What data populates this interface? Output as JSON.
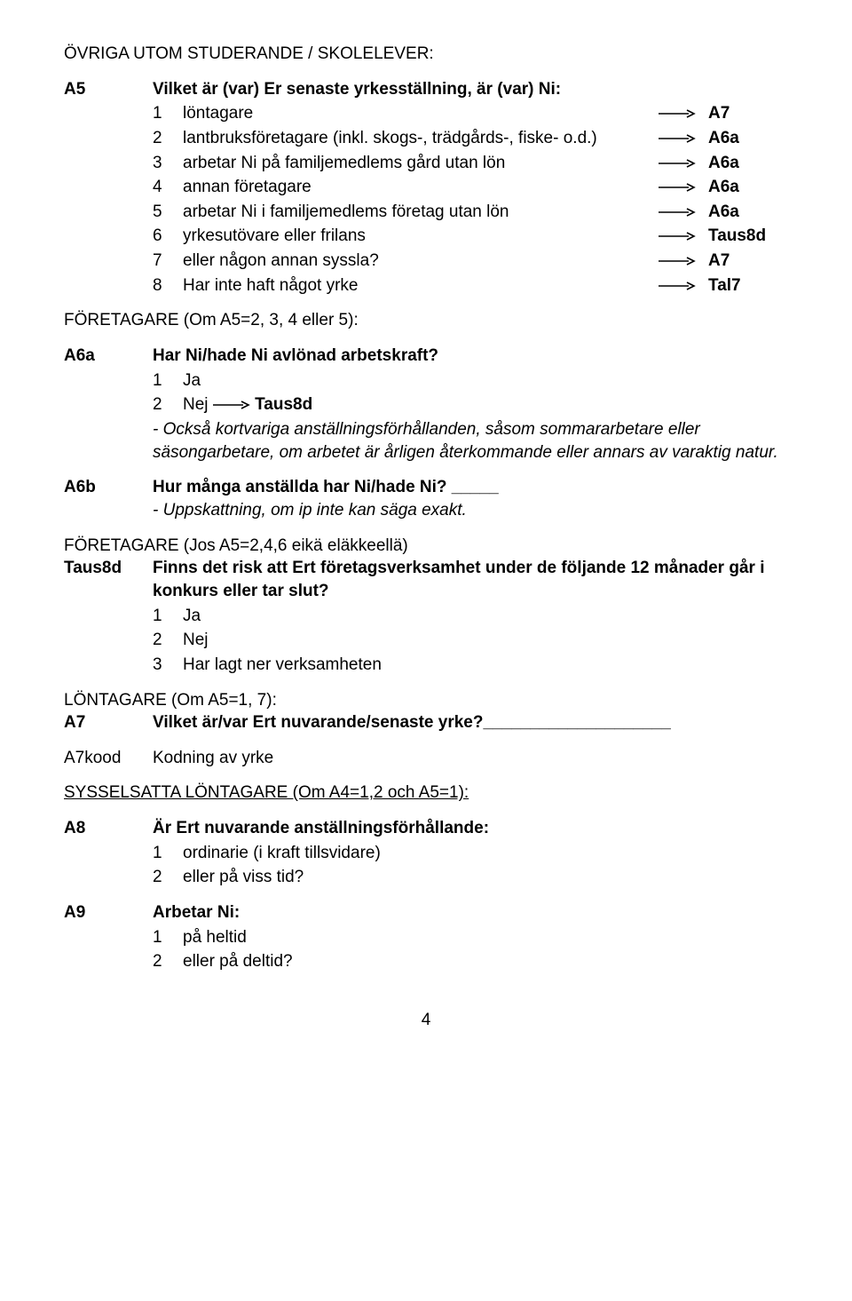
{
  "header": {
    "title": "ÖVRIGA UTOM STUDERANDE / SKOLELEVER:"
  },
  "a5": {
    "code": "A5",
    "question": "Vilket är (var) Er senaste yrkesställning, är (var) Ni:",
    "options": [
      {
        "n": "1",
        "text": "löntagare",
        "target": "A7"
      },
      {
        "n": "2",
        "text": "lantbruksföretagare (inkl. skogs-, trädgårds-, fiske- o.d.)",
        "target": "A6a"
      },
      {
        "n": "3",
        "text": "arbetar Ni på familjemedlems gård utan lön",
        "target": "A6a"
      },
      {
        "n": "4",
        "text": "annan företagare",
        "target": "A6a"
      },
      {
        "n": "5",
        "text": "arbetar Ni i familjemedlems företag utan lön",
        "target": "A6a"
      },
      {
        "n": "6",
        "text": "yrkesutövare eller frilans",
        "target": "Taus8d"
      },
      {
        "n": "7",
        "text": "eller någon annan syssla?",
        "target": "A7"
      },
      {
        "n": "8",
        "text": "Har inte haft något yrke",
        "target": "Tal7"
      }
    ]
  },
  "foretagare1": {
    "label": "FÖRETAGARE (Om A5=2, 3, 4 eller 5):"
  },
  "a6a": {
    "code": "A6a",
    "question": "Har Ni/hade Ni avlönad arbetskraft?",
    "opt1_n": "1",
    "opt1_text": "Ja",
    "opt2_n": "2",
    "opt2_text": "Nej",
    "opt2_target": "Taus8d",
    "note": "- Också kortvariga anställningsförhållanden, såsom sommararbetare eller säsongarbetare, om arbetet är årligen återkommande eller annars av varaktig natur."
  },
  "a6b": {
    "code": "A6b",
    "question": "Hur många anställda har Ni/hade Ni? _____",
    "note": "- Uppskattning, om ip inte kan säga exakt."
  },
  "foretagare2": {
    "label": "FÖRETAGARE (Jos A5=2,4,6 eikä eläkkeellä)"
  },
  "taus8d": {
    "code": "Taus8d",
    "question": "Finns det risk att Ert företagsverksamhet under de följande 12 månader går i konkurs eller tar slut?",
    "opts": [
      {
        "n": "1",
        "text": "Ja"
      },
      {
        "n": "2",
        "text": "Nej"
      },
      {
        "n": "3",
        "text": "Har lagt ner verksamheten"
      }
    ]
  },
  "lontagare": {
    "label": "LÖNTAGARE (Om A5=1, 7):"
  },
  "a7": {
    "code": "A7",
    "question": "Vilket är/var Ert nuvarande/senaste yrke?____________________"
  },
  "a7kood": {
    "code": "A7kood",
    "text": "Kodning av yrke"
  },
  "sysselsatta": {
    "label": "SYSSELSATTA LÖNTAGARE (Om A4=1,2 och A5=1):"
  },
  "a8": {
    "code": "A8",
    "question": "Är Ert nuvarande anställningsförhållande:",
    "opts": [
      {
        "n": "1",
        "text": "ordinarie (i kraft tillsvidare)"
      },
      {
        "n": "2",
        "text": "eller på viss tid?"
      }
    ]
  },
  "a9": {
    "code": "A9",
    "question": "Arbetar Ni:",
    "opts": [
      {
        "n": "1",
        "text": "på heltid"
      },
      {
        "n": "2",
        "text": "eller på deltid?"
      }
    ]
  },
  "page_number": "4",
  "arrow_svg": {
    "width": 42,
    "height": 12,
    "color": "#000000"
  }
}
